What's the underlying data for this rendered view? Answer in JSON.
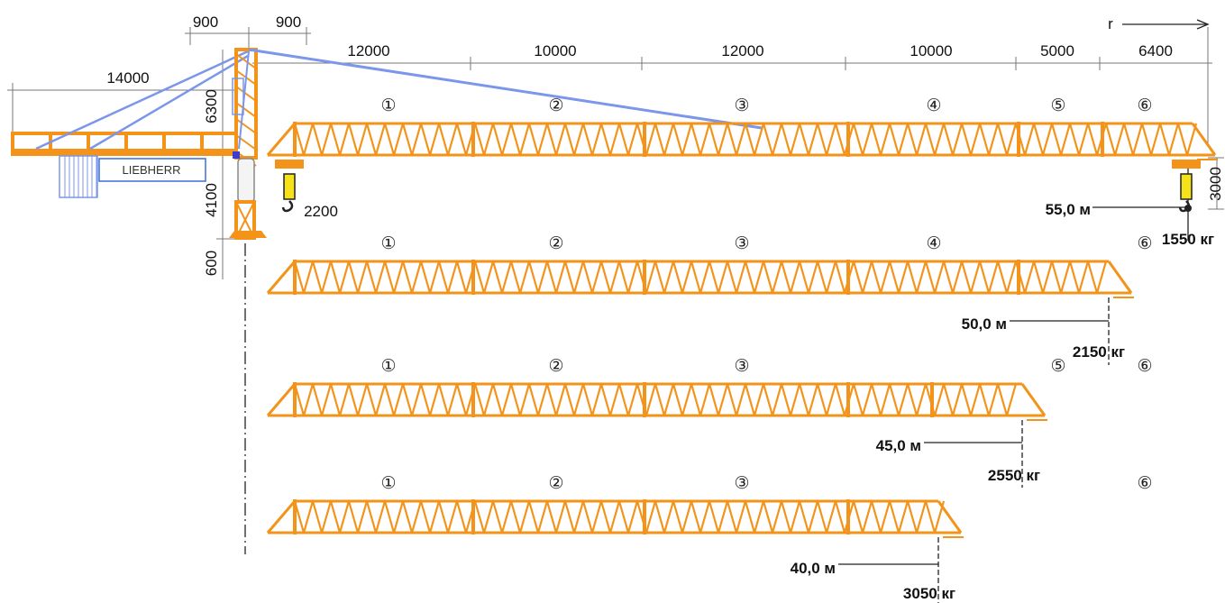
{
  "colors": {
    "boom": "#F39319",
    "tie": "#7B96EA",
    "dim": "#777777",
    "hook_yellow": "#F5E21A",
    "text": "#111111"
  },
  "counterjib": {
    "length": "14000"
  },
  "tower": {
    "top_left": "900",
    "top_right": "900",
    "head_height": "6300",
    "cab_height": "4100",
    "base_height": "600",
    "trolley": "2200",
    "brand": "LIEBHERR"
  },
  "boom_dims": [
    "12000",
    "10000",
    "12000",
    "10000",
    "5000",
    "6400"
  ],
  "radius_label": "r",
  "end_height": "3000",
  "section_marks": [
    "①",
    "②",
    "③",
    "④",
    "⑤",
    "⑥"
  ],
  "configs": [
    {
      "sections": [
        "①",
        "②",
        "③",
        "④",
        "⑤",
        "⑥"
      ],
      "radius": "55,0 м",
      "load": "1550 кг"
    },
    {
      "sections": [
        "①",
        "②",
        "③",
        "④",
        "⑥"
      ],
      "radius": "50,0 м",
      "load": "2150 кг"
    },
    {
      "sections": [
        "①",
        "②",
        "③",
        "⑤",
        "⑥"
      ],
      "radius": "45,0 м",
      "load": "2550 кг"
    },
    {
      "sections": [
        "①",
        "②",
        "③",
        "⑥"
      ],
      "radius": "40,0 м",
      "load": "3050 кг"
    }
  ]
}
